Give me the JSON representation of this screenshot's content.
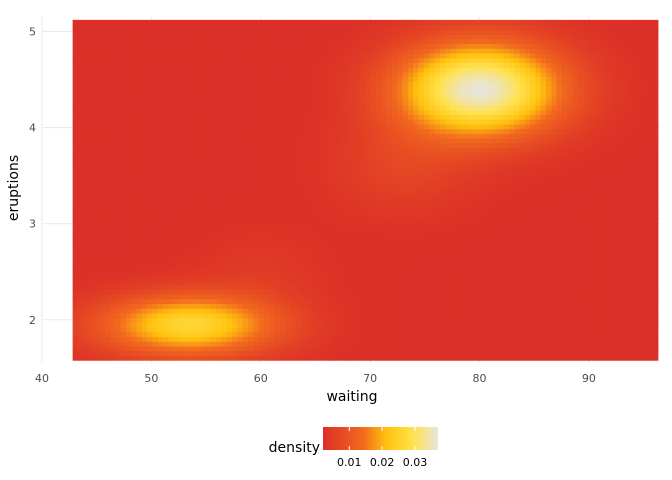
{
  "chart_data": {
    "type": "heatmap",
    "xlabel": "waiting",
    "ylabel": "eruptions",
    "xlim": [
      40,
      96.5
    ],
    "ylim": [
      1.55,
      5.15
    ],
    "x_ticks": [
      40,
      50,
      60,
      70,
      80,
      90
    ],
    "y_ticks": [
      2,
      3,
      4,
      5
    ],
    "data_x_range": [
      42.8,
      96.3
    ],
    "data_y_range": [
      1.58,
      5.12
    ],
    "grid": true,
    "density_peaks": [
      {
        "waiting": 80.0,
        "eruptions": 4.4,
        "density": 0.037
      },
      {
        "waiting": 53.5,
        "eruptions": 1.95,
        "density": 0.03
      }
    ],
    "legend": {
      "title": "density",
      "placement": "bottom",
      "tick_values": [
        0.01,
        0.02,
        0.03
      ],
      "tick_labels": [
        "0.01",
        "0.02",
        "0.03"
      ],
      "range": [
        0.002,
        0.037
      ]
    },
    "color_scale": {
      "stops": [
        "#DC2F28",
        "#F26A1E",
        "#FFC20E",
        "#FFE24D",
        "#E8E4D8"
      ],
      "stop_positions": [
        0.0,
        0.35,
        0.55,
        0.78,
        1.0
      ]
    }
  }
}
